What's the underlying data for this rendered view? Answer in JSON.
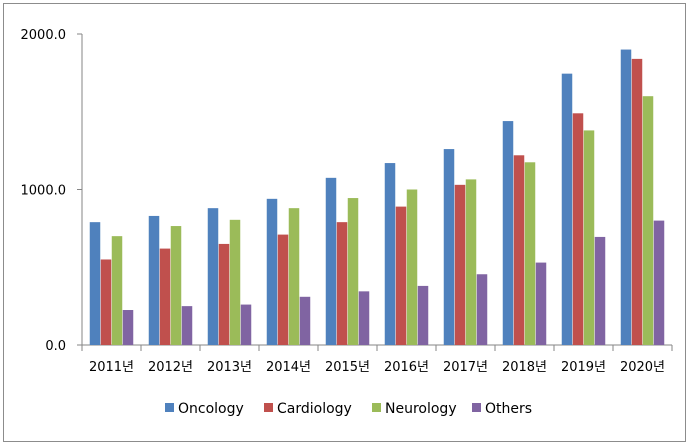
{
  "chart_data": {
    "type": "bar",
    "title": "",
    "xlabel": "",
    "ylabel": "",
    "categories": [
      "2011년",
      "2012년",
      "2013년",
      "2014년",
      "2015년",
      "2016년",
      "2017년",
      "2018년",
      "2019년",
      "2020년"
    ],
    "series": [
      {
        "name": "Oncology",
        "color": "#4F81BD",
        "values": [
          790,
          830,
          880,
          940,
          1075,
          1170,
          1260,
          1440,
          1745,
          1900
        ]
      },
      {
        "name": "Cardiology",
        "color": "#C0504D",
        "values": [
          550,
          620,
          650,
          710,
          790,
          890,
          1030,
          1220,
          1490,
          1840
        ]
      },
      {
        "name": "Neurology",
        "color": "#9BBB59",
        "values": [
          700,
          765,
          805,
          880,
          945,
          1000,
          1065,
          1175,
          1380,
          1600
        ]
      },
      {
        "name": "Others",
        "color": "#8064A2",
        "values": [
          225,
          250,
          260,
          310,
          345,
          380,
          455,
          530,
          695,
          800
        ]
      }
    ],
    "ylim": [
      0,
      2000
    ],
    "yticks": [
      0,
      1000,
      2000
    ],
    "ytick_labels": [
      "0.0",
      "1000.0",
      "2000.0"
    ],
    "grid": false,
    "legend_position": "bottom"
  }
}
